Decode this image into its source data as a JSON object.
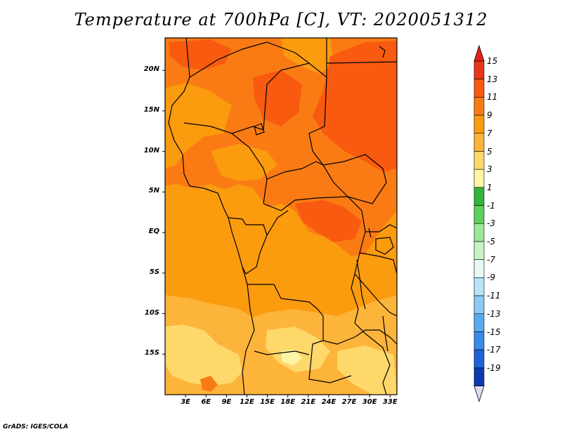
{
  "title": "Temperature at 700hPa [C], VT: 2020051312",
  "credit": "GrADS: IGES/COLA",
  "map": {
    "variable": "Temperature",
    "level": "700hPa",
    "units": "C",
    "valid_time": "2020051312",
    "region": "Central Africa",
    "lon_range": [
      0,
      34
    ],
    "lat_range": [
      -20,
      24
    ],
    "lat_ticks": [
      {
        "value": 20,
        "label": "20N"
      },
      {
        "value": 15,
        "label": "15N"
      },
      {
        "value": 10,
        "label": "10N"
      },
      {
        "value": 5,
        "label": "5N"
      },
      {
        "value": 0,
        "label": "EQ"
      },
      {
        "value": -5,
        "label": "5S"
      },
      {
        "value": -10,
        "label": "10S"
      },
      {
        "value": -15,
        "label": "15S"
      }
    ],
    "lon_ticks": [
      {
        "value": 3,
        "label": "3E"
      },
      {
        "value": 6,
        "label": "6E"
      },
      {
        "value": 9,
        "label": "9E"
      },
      {
        "value": 12,
        "label": "12E"
      },
      {
        "value": 15,
        "label": "15E"
      },
      {
        "value": 18,
        "label": "18E"
      },
      {
        "value": 21,
        "label": "21E"
      },
      {
        "value": 24,
        "label": "24E"
      },
      {
        "value": 27,
        "label": "27E"
      },
      {
        "value": 30,
        "label": "30E"
      },
      {
        "value": 33,
        "label": "33E"
      }
    ]
  },
  "colorbar": {
    "levels": [
      {
        "label": "15",
        "color": "#e8361a"
      },
      {
        "label": "13",
        "color": "#f85a10"
      },
      {
        "label": "11",
        "color": "#fa7b14"
      },
      {
        "label": "9",
        "color": "#fb9b0e"
      },
      {
        "label": "7",
        "color": "#fdb43a"
      },
      {
        "label": "5",
        "color": "#fed86a"
      },
      {
        "label": "3",
        "color": "#fef6a6"
      },
      {
        "label": "1",
        "color": "#34b43a"
      },
      {
        "label": "-1",
        "color": "#5cd05c"
      },
      {
        "label": "-3",
        "color": "#9ce89a"
      },
      {
        "label": "-5",
        "color": "#c8f4c4"
      },
      {
        "label": "-7",
        "color": "#e8f8f8"
      },
      {
        "label": "-9",
        "color": "#b8e4f8"
      },
      {
        "label": "-11",
        "color": "#8ccaf4"
      },
      {
        "label": "-13",
        "color": "#5aaaf0"
      },
      {
        "label": "-15",
        "color": "#3a8ae8"
      },
      {
        "label": "-17",
        "color": "#1e64d8"
      },
      {
        "label": "-19",
        "color": "#0e3ab0"
      }
    ],
    "bottom_color": "#0a1c70",
    "under_color": "#dcdcf4",
    "over_color": "#e4201a"
  }
}
